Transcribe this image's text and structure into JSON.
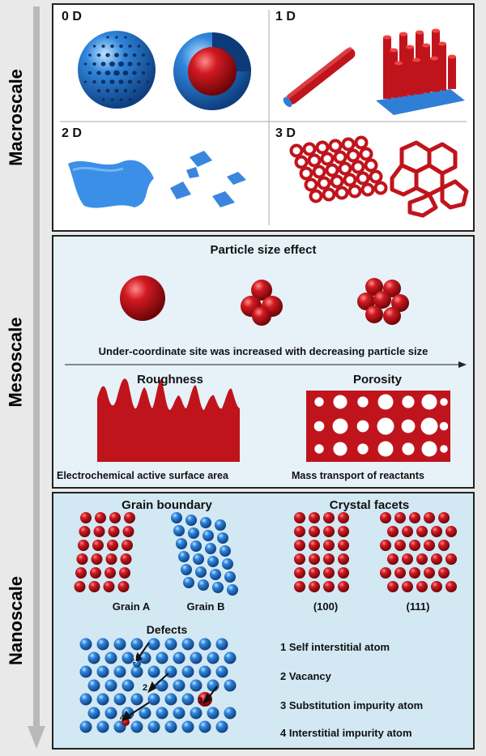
{
  "axis": {
    "macro": "Macroscale",
    "meso": "Mesoscale",
    "nano": "Nanoscale"
  },
  "macro": {
    "d0": "0 D",
    "d1": "1 D",
    "d2": "2 D",
    "d3": "3 D"
  },
  "meso": {
    "title": "Particle size effect",
    "caption": "Under-coordinate site was increased with decreasing particle size",
    "roughness": "Roughness",
    "porosity": "Porosity",
    "ecsa": "Electrochemical active surface area",
    "mass": "Mass transport of reactants"
  },
  "nano": {
    "grain_title": "Grain boundary",
    "grain_a": "Grain A",
    "grain_b": "Grain B",
    "facets_title": "Crystal facets",
    "f100": "(100)",
    "f111": "(111)",
    "defects_title": "Defects",
    "d1": "1",
    "d2": "2",
    "d3": "3",
    "d4": "4",
    "defect_list": [
      "1 Self interstitial atom",
      "2 Vacancy",
      "3 Substitution impurity atom",
      "4 Interstitial impurity atom"
    ]
  },
  "colors": {
    "red": "#c0141c",
    "blue": "#2f7fd6",
    "macro_bg": "#ffffff",
    "meso_bg": "#e6f1f8",
    "nano_bg": "#d2e8f3",
    "arrow": "#b9b9b9"
  }
}
